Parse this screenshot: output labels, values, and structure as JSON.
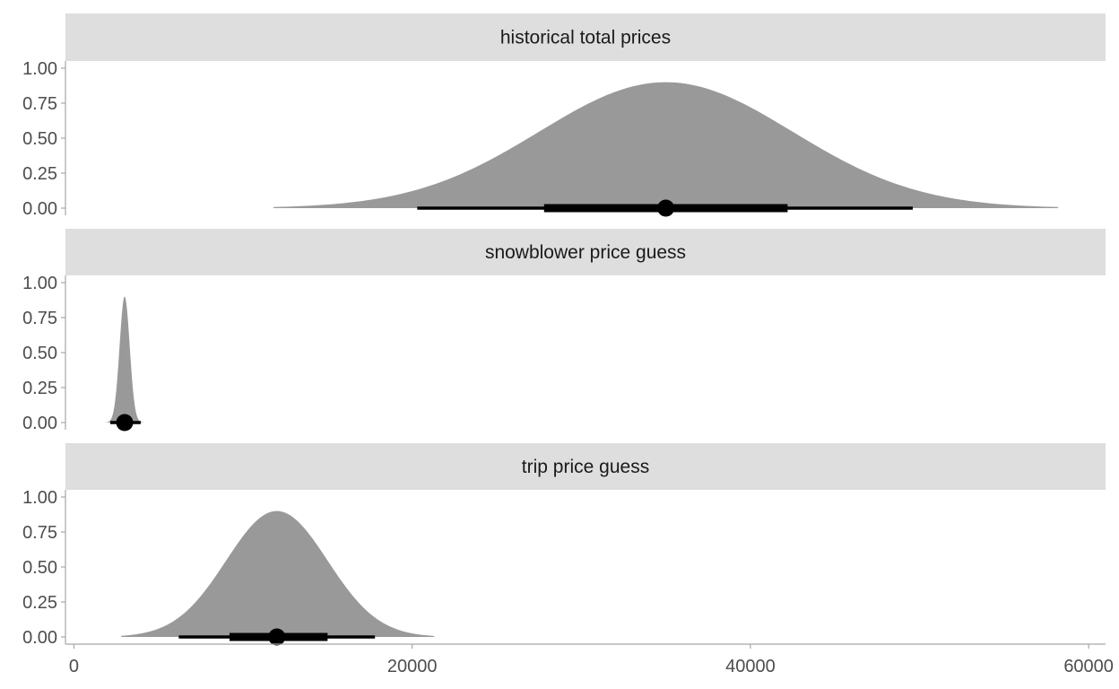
{
  "chart_data": {
    "type": "area",
    "chart_kind": "half-eye (density + interval) faceted plot",
    "title": "",
    "xlabel": "",
    "ylabel": "",
    "x_ticks": [
      0,
      20000,
      40000,
      60000
    ],
    "x_tick_labels": [
      "0",
      "20000",
      "40000",
      "60000"
    ],
    "xlim": [
      -500,
      61000
    ],
    "y_ticks": [
      0,
      0.25,
      0.5,
      0.75,
      1.0
    ],
    "y_tick_labels": [
      "0.00",
      "0.25",
      "0.50",
      "0.75",
      "1.00"
    ],
    "ylim": [
      0,
      1.0
    ],
    "grid": false,
    "legend": "none",
    "colors": {
      "density_fill": "#999999",
      "interval": "#000000",
      "strip_background": "#dedede",
      "axis_line": "#a6a6a6"
    },
    "facets": [
      {
        "label": "historical total prices",
        "density": {
          "mean": 35000,
          "sd": 7500,
          "from": 11800,
          "to": 58200,
          "peak": 0.9
        },
        "point": 35000,
        "interval_66": [
          27800,
          42200
        ],
        "interval_95": [
          20300,
          49600
        ]
      },
      {
        "label": "snowblower price guess",
        "density": {
          "mean": 3000,
          "sd": 300,
          "from": 1500,
          "to": 4500,
          "peak": 0.9
        },
        "point": 3000,
        "interval_66": [
          2750,
          3250
        ],
        "interval_95": [
          2150,
          3950
        ]
      },
      {
        "label": "trip price guess",
        "density": {
          "mean": 12000,
          "sd": 3000,
          "from": 2800,
          "to": 21300,
          "peak": 0.9
        },
        "point": 12000,
        "interval_66": [
          9200,
          15000
        ],
        "interval_95": [
          6200,
          17800
        ]
      }
    ]
  }
}
